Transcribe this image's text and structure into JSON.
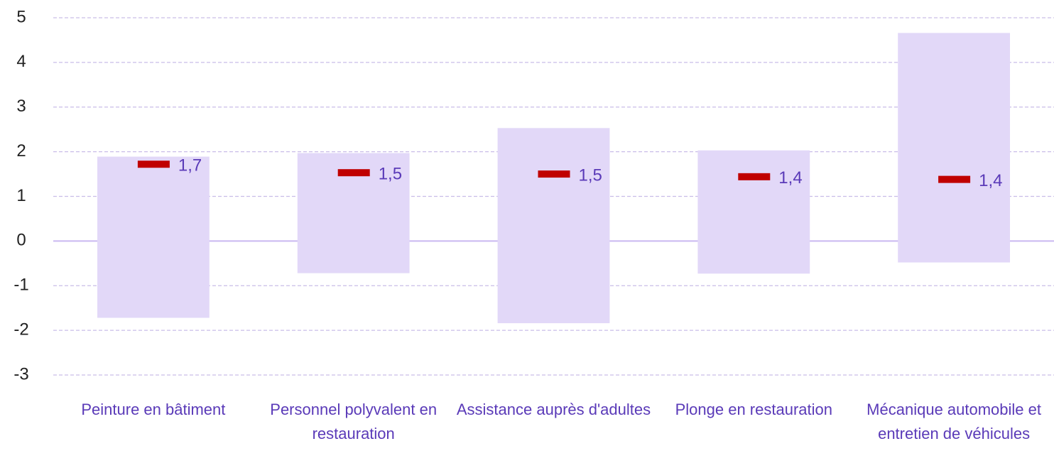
{
  "chart_data": {
    "type": "range",
    "categories": [
      "Peinture en bâtiment",
      "Personnel polyvalent en restauration",
      "Assistance auprès d'adultes",
      "Plonge en restauration",
      "Mécanique automobile et entretien de véhicules"
    ],
    "low": [
      -1.72,
      -0.72,
      -1.84,
      -0.73,
      -0.48
    ],
    "high": [
      1.89,
      1.97,
      2.53,
      2.03,
      4.66
    ],
    "values": [
      1.72,
      1.53,
      1.5,
      1.44,
      1.38
    ],
    "value_labels": [
      "1,7",
      "1,5",
      "1,5",
      "1,4",
      "1,4"
    ],
    "bar_color": "#e2d8f8",
    "marker_color": "#c00000",
    "ylim": [
      -3,
      5
    ],
    "yticks": [
      -3,
      -2,
      -1,
      0,
      1,
      2,
      3,
      4,
      5
    ],
    "grid": true
  }
}
